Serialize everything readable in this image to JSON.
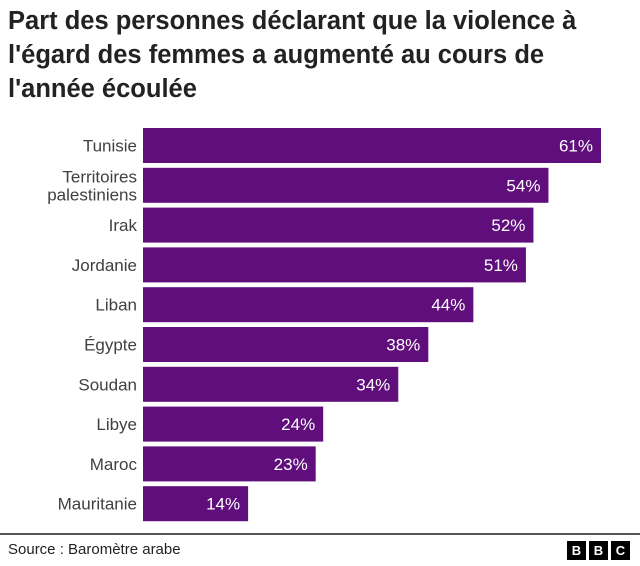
{
  "title": "Part des personnes déclarant que la violence à l'égard des femmes a augmenté au cours de l'année écoulée",
  "source": "Source : Baromètre arabe",
  "logo": "BBC",
  "colors": {
    "bar": "#5f0e7b",
    "bar_label": "#ffffff",
    "category_label": "#404040"
  },
  "chart_data": {
    "type": "bar",
    "orientation": "horizontal",
    "title": "Part des personnes déclarant que la violence à l'égard des femmes a augmenté au cours de l'année écoulée",
    "categories": [
      [
        "Tunisie"
      ],
      [
        "Territoires",
        "palestiniens"
      ],
      [
        "Irak"
      ],
      [
        "Jordanie"
      ],
      [
        "Liban"
      ],
      [
        "Égypte"
      ],
      [
        "Soudan"
      ],
      [
        "Libye"
      ],
      [
        "Maroc"
      ],
      [
        "Mauritanie"
      ]
    ],
    "values": [
      61,
      54,
      52,
      51,
      44,
      38,
      34,
      24,
      23,
      14
    ],
    "data_labels": [
      "61%",
      "54%",
      "52%",
      "51%",
      "44%",
      "38%",
      "34%",
      "24%",
      "23%",
      "14%"
    ],
    "xlim": [
      0,
      61
    ],
    "grid": false
  }
}
